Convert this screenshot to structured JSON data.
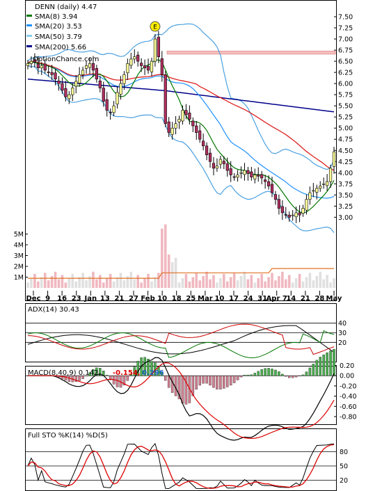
{
  "chart_data": [
    {
      "type": "candlestick",
      "title": "DENN (daily) 4.47",
      "watermark": "OptionChance.com",
      "legend": [
        {
          "label": "SMA(8) 3.94",
          "color": "#007700"
        },
        {
          "label": "SMA(20) 3.53",
          "color": "#1e90ff"
        },
        {
          "label": "SMA(50) 3.79",
          "color": "#87ceeb"
        },
        {
          "label": "SMA(200) 5.66",
          "color": "#00008b"
        }
      ],
      "ylim": [
        2.6,
        7.75
      ],
      "yticks": [
        "7.50",
        "7.25",
        "7.00",
        "6.75",
        "6.50",
        "6.25",
        "6.00",
        "5.75",
        "5.50",
        "5.25",
        "5.00",
        "4.75",
        "4.50",
        "4.25",
        "4.00",
        "3.75",
        "3.50",
        "3.25",
        "3.00"
      ],
      "xticks": [
        "Dec",
        "9",
        "16",
        "23",
        "Jan",
        "13",
        "21",
        "27",
        "Feb",
        "10",
        "18",
        "25",
        "Mar",
        "10",
        "17",
        "24",
        "31",
        "Apr 7",
        "14",
        "21",
        "28",
        "May"
      ],
      "volume_ticks": [
        "5M",
        "4M",
        "3M",
        "2M",
        "1M"
      ],
      "earnings_markers": [
        {
          "label": "E",
          "index": 37
        },
        {
          "label": "E",
          "index": 108
        }
      ],
      "close": [
        6.45,
        6.5,
        6.48,
        6.35,
        6.4,
        6.3,
        6.25,
        6.2,
        6.1,
        6.0,
        5.85,
        5.7,
        5.75,
        5.9,
        6.05,
        6.2,
        6.3,
        6.4,
        6.45,
        6.3,
        6.1,
        5.9,
        5.6,
        5.4,
        5.35,
        5.5,
        5.8,
        6.0,
        6.2,
        6.45,
        6.55,
        6.6,
        6.5,
        6.4,
        6.35,
        6.3,
        6.5,
        7.0,
        6.6,
        6.2,
        5.1,
        4.9,
        5.0,
        5.1,
        5.2,
        5.4,
        5.3,
        5.2,
        5.05,
        4.9,
        4.75,
        4.6,
        4.4,
        4.25,
        4.1,
        4.15,
        4.3,
        4.2,
        4.05,
        3.95,
        3.9,
        3.95,
        4.0,
        4.05,
        3.98,
        3.9,
        3.95,
        3.92,
        3.88,
        3.8,
        3.7,
        3.55,
        3.4,
        3.2,
        3.1,
        3.05,
        3.0,
        3.05,
        3.1,
        3.05,
        3.2,
        3.4,
        3.55,
        3.6,
        3.65,
        3.7,
        3.75,
        3.8,
        4.1,
        4.47
      ]
    },
    {
      "type": "line",
      "title": "ADX(14) 30.43",
      "ylim": [
        0,
        60
      ],
      "yticks": [
        "40",
        "30",
        "20"
      ]
    },
    {
      "type": "bar",
      "title": "MACD(8,40,9) 0.142,",
      "values_printed": [
        "-0.154,",
        "0.296"
      ],
      "value_colors": [
        "#dd0000",
        "#1e60c0"
      ],
      "ylim": [
        -0.95,
        0.18
      ],
      "yticks": [
        "0.00",
        "-0.20",
        "-0.40",
        "-0.60",
        "-0.80",
        "0.20"
      ],
      "ytick_labels": [
        "0.20",
        "0.00",
        "-0.20",
        "-0.40",
        "-0.60",
        "-0.80"
      ]
    },
    {
      "type": "line",
      "title": "Full STO %K(14) %D(5)",
      "ylim": [
        0,
        100
      ],
      "yticks": [
        "80",
        "50",
        "20"
      ]
    }
  ]
}
